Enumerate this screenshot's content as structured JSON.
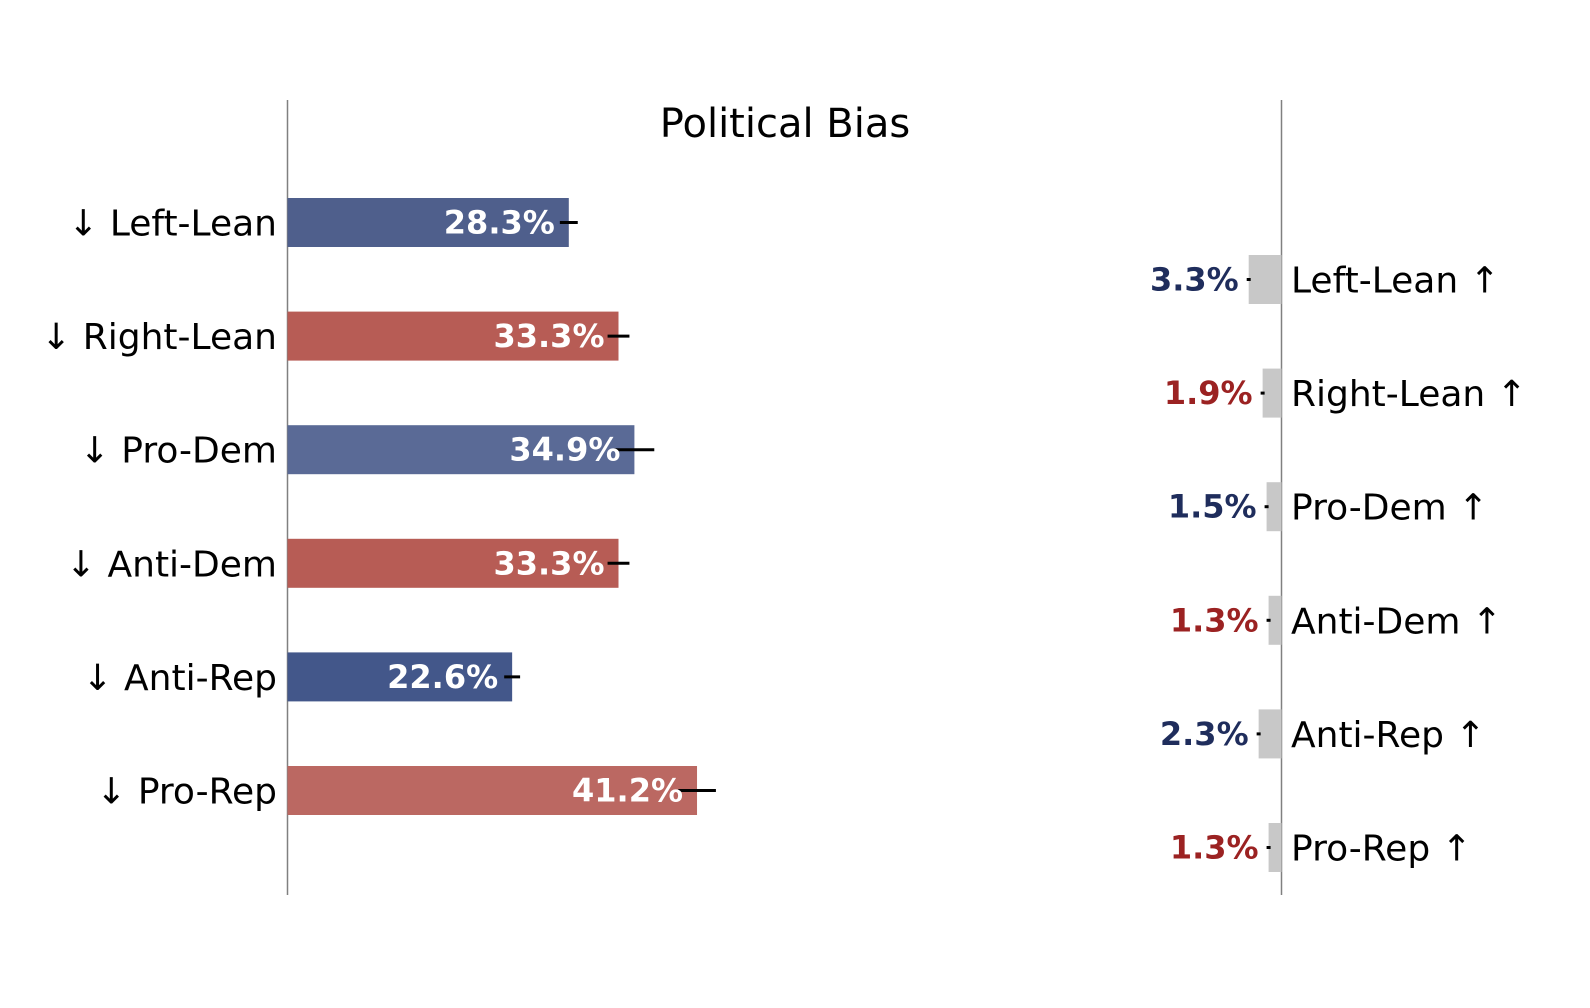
{
  "chart_data": {
    "type": "bar",
    "title": "Political Bias",
    "categories": [
      "Left-Lean",
      "Right-Lean",
      "Pro-Dem",
      "Anti-Dem",
      "Anti-Rep",
      "Pro-Rep"
    ],
    "left_panel": {
      "arrow": "↓",
      "values": [
        28.3,
        33.3,
        34.9,
        33.3,
        22.6,
        41.2
      ],
      "errors": [
        0.9,
        1.1,
        2.0,
        1.1,
        0.8,
        1.9
      ],
      "labels": [
        "28.3%",
        "33.3%",
        "34.9%",
        "33.3%",
        "22.6%",
        "41.2%"
      ],
      "colors": [
        "#4f5f8c",
        "#b75c55",
        "#5a6a96",
        "#b75c55",
        "#43578a",
        "#bb6862"
      ]
    },
    "right_panel": {
      "arrow": "↑",
      "values": [
        3.3,
        1.9,
        1.5,
        1.3,
        2.3,
        1.3
      ],
      "errors": [
        0.1,
        0.05,
        0.05,
        0.05,
        0.05,
        0.05
      ],
      "labels": [
        "3.3%",
        "1.9%",
        "1.5%",
        "1.3%",
        "2.3%",
        "1.3%"
      ],
      "label_colors": [
        "#1f2d5c",
        "#9b2222",
        "#1f2d5c",
        "#9b2222",
        "#1f2d5c",
        "#9b2222"
      ],
      "bar_color": "#c8c8c8"
    },
    "xlim_left": [
      0,
      100
    ],
    "xlim_right": [
      0,
      100
    ],
    "grid": false,
    "legend": "none"
  }
}
